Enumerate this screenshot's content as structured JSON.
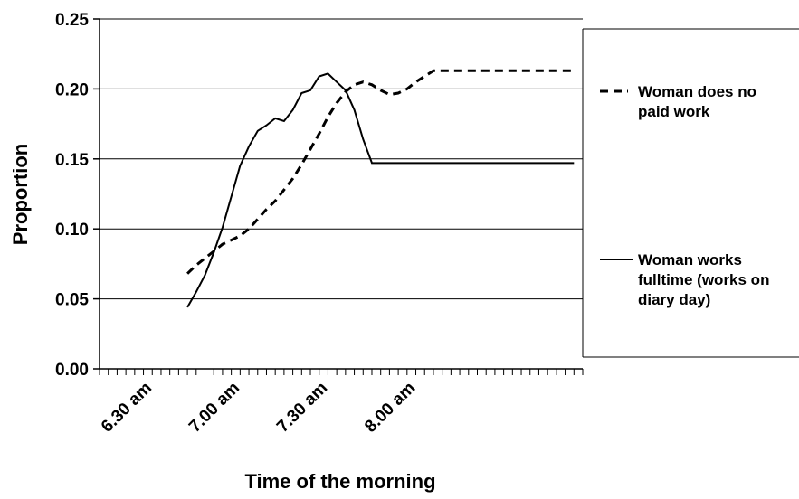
{
  "chart_data": {
    "type": "line",
    "xlabel": "Time of the morning",
    "ylabel": "Proportion",
    "ylim": [
      0,
      0.25
    ],
    "yticks": [
      "0.00",
      "0.05",
      "0.10",
      "0.15",
      "0.20",
      "0.25"
    ],
    "x_tick_labels": [
      "6.30 am",
      "7.00 am",
      "7.30 am",
      "8.00 am"
    ],
    "grid": "horizontal",
    "legend_position": "right",
    "series": [
      {
        "name": "Woman does no paid work",
        "legend_lines": [
          "Woman does no paid work"
        ],
        "style": "dashed",
        "color": "#000000",
        "x": [
          "6.45 am",
          "6.48 am",
          "6.51 am",
          "6.54 am",
          "6.57 am",
          "7.00 am",
          "7.03 am",
          "7.06 am",
          "7.09 am",
          "7.12 am",
          "7.15 am",
          "7.18 am",
          "7.21 am",
          "7.24 am",
          "7.27 am",
          "7.30 am",
          "7.33 am",
          "7.36 am",
          "7.39 am",
          "7.42 am",
          "7.45 am",
          "7.48 am",
          "7.51 am",
          "7.54 am",
          "7.57 am",
          "8.00 am",
          "8.03 am",
          "8.06 am",
          "8.09 am",
          "8.12 am",
          "8.15 am",
          "8.18 am",
          "8.21 am",
          "8.24 am",
          "8.27 am",
          "8.30 am",
          "8.33 am",
          "8.36 am",
          "8.39 am",
          "8.42 am",
          "8.45 am",
          "8.48 am",
          "8.51 am",
          "8.54 am",
          "8.57 am"
        ],
        "values": [
          0.068,
          0.074,
          0.079,
          0.084,
          0.089,
          0.092,
          0.095,
          0.1,
          0.107,
          0.114,
          0.12,
          0.128,
          0.136,
          0.146,
          0.157,
          0.168,
          0.18,
          0.19,
          0.198,
          0.203,
          0.205,
          0.203,
          0.199,
          0.196,
          0.197,
          0.2,
          0.205,
          0.209,
          0.213,
          0.213,
          0.213,
          0.213,
          0.213,
          0.213,
          0.213,
          0.213,
          0.213,
          0.213,
          0.213,
          0.213,
          0.213,
          0.213,
          0.213,
          0.213,
          0.213
        ]
      },
      {
        "name": "Woman works fulltime (works on diary day)",
        "legend_lines": [
          "Woman works",
          "fulltime (works on",
          "diary day)"
        ],
        "style": "solid",
        "color": "#000000",
        "x": [
          "6.45 am",
          "6.48 am",
          "6.51 am",
          "6.54 am",
          "6.57 am",
          "7.00 am",
          "7.03 am",
          "7.06 am",
          "7.09 am",
          "7.12 am",
          "7.15 am",
          "7.18 am",
          "7.21 am",
          "7.24 am",
          "7.27 am",
          "7.30 am",
          "7.33 am",
          "7.36 am",
          "7.39 am",
          "7.42 am",
          "7.45 am",
          "7.48 am",
          "7.51 am",
          "7.54 am",
          "7.57 am",
          "8.00 am",
          "8.03 am",
          "8.06 am",
          "8.09 am",
          "8.12 am",
          "8.15 am",
          "8.18 am",
          "8.21 am",
          "8.24 am",
          "8.27 am",
          "8.30 am",
          "8.33 am",
          "8.36 am",
          "8.39 am",
          "8.42 am",
          "8.45 am",
          "8.48 am",
          "8.51 am",
          "8.54 am",
          "8.57 am"
        ],
        "values": [
          0.044,
          0.055,
          0.067,
          0.083,
          0.101,
          0.123,
          0.145,
          0.159,
          0.17,
          0.174,
          0.179,
          0.177,
          0.185,
          0.197,
          0.199,
          0.209,
          0.211,
          0.205,
          0.199,
          0.185,
          0.164,
          0.147,
          0.147,
          0.147,
          0.147,
          0.147,
          0.147,
          0.147,
          0.147,
          0.147,
          0.147,
          0.147,
          0.147,
          0.147,
          0.147,
          0.147,
          0.147,
          0.147,
          0.147,
          0.147,
          0.147,
          0.147,
          0.147,
          0.147,
          0.147
        ]
      }
    ]
  }
}
